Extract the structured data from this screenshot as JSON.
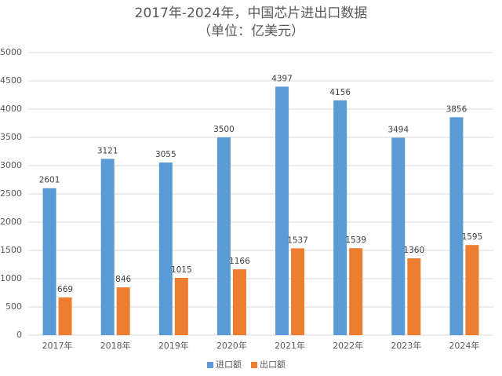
{
  "chart_data": {
    "type": "bar",
    "title": "2017年-2024年，中国芯片进出口数据",
    "subtitle": "（单位：亿美元）",
    "categories": [
      "2017年",
      "2018年",
      "2019年",
      "2020年",
      "2021年",
      "2022年",
      "2023年",
      "2024年"
    ],
    "series": [
      {
        "name": "进口额",
        "color": "#5b9bd5",
        "values": [
          2601,
          3121,
          3055,
          3500,
          4397,
          4156,
          3494,
          3856
        ]
      },
      {
        "name": "出口额",
        "color": "#ed7d31",
        "values": [
          669,
          846,
          1015,
          1166,
          1537,
          1539,
          1360,
          1595
        ]
      }
    ],
    "ylim": [
      0,
      5000
    ],
    "yticks": [
      0,
      500,
      1000,
      1500,
      2000,
      2500,
      3000,
      3500,
      4000,
      4500,
      5000
    ],
    "grid": true,
    "legend": "bottom"
  }
}
